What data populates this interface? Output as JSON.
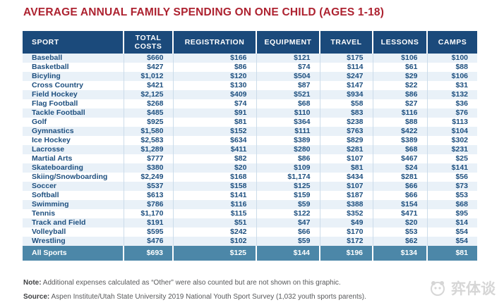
{
  "title": "AVERAGE ANNUAL FAMILY SPENDING ON ONE CHILD (AGES 1-18)",
  "colors": {
    "title_red": "#ad2230",
    "header_navy": "#1b4a7b",
    "body_text_navy": "#1d4f7f",
    "stripe_light_blue": "#e9f1f8",
    "total_row_steel_blue": "#4c87a8",
    "note_gray": "#58595b",
    "watermark_gray": "#d6d6d6"
  },
  "chart_data": {
    "type": "table",
    "title": "AVERAGE ANNUAL FAMILY SPENDING ON ONE CHILD (AGES 1-18)",
    "columns": [
      "SPORT",
      "TOTAL COSTS",
      "REGISTRATION",
      "EQUIPMENT",
      "TRAVEL",
      "LESSONS",
      "CAMPS"
    ],
    "currency": "USD",
    "rows": [
      [
        "Baseball",
        660,
        166,
        121,
        175,
        106,
        100
      ],
      [
        "Basketball",
        427,
        86,
        74,
        114,
        61,
        88
      ],
      [
        "Bicyling",
        1012,
        120,
        504,
        247,
        29,
        106
      ],
      [
        "Cross Country",
        421,
        130,
        87,
        147,
        22,
        31
      ],
      [
        "Field Hockey",
        2125,
        409,
        521,
        934,
        86,
        132
      ],
      [
        "Flag Football",
        268,
        74,
        68,
        58,
        27,
        36
      ],
      [
        "Tackle Football",
        485,
        91,
        110,
        83,
        116,
        76
      ],
      [
        "Golf",
        925,
        81,
        364,
        238,
        88,
        113
      ],
      [
        "Gymnastics",
        1580,
        152,
        111,
        763,
        422,
        104
      ],
      [
        "Ice Hockey",
        2583,
        634,
        389,
        829,
        389,
        302
      ],
      [
        "Lacrosse",
        1289,
        411,
        280,
        281,
        68,
        231
      ],
      [
        "Martial Arts",
        777,
        82,
        86,
        107,
        467,
        25
      ],
      [
        "Skateboarding",
        380,
        20,
        109,
        81,
        24,
        141
      ],
      [
        "Skiing/Snowboarding",
        2249,
        168,
        1174,
        434,
        281,
        56
      ],
      [
        "Soccer",
        537,
        158,
        125,
        107,
        66,
        73
      ],
      [
        "Softball",
        613,
        141,
        159,
        187,
        66,
        53
      ],
      [
        "Swimming",
        786,
        116,
        59,
        388,
        154,
        68
      ],
      [
        "Tennis",
        1170,
        115,
        122,
        352,
        471,
        95
      ],
      [
        "Track and Field",
        191,
        51,
        47,
        49,
        20,
        14
      ],
      [
        "Volleyball",
        595,
        242,
        66,
        170,
        53,
        54
      ],
      [
        "Wrestling",
        476,
        102,
        59,
        172,
        62,
        54
      ]
    ],
    "total_row": [
      "All Sports",
      693,
      125,
      144,
      196,
      134,
      81
    ]
  },
  "footer": {
    "note_label": "Note:",
    "note_text": " Additional expenses calculated as “Other” were also counted but are not shown on this graphic.",
    "source_label": "Source:",
    "source_text": " Aspen Institute/Utah State University 2019 National Youth Sport Survey (1,032 youth sports parents)."
  },
  "watermark": {
    "text": "弈体谈",
    "icon": "panda-face-icon"
  }
}
